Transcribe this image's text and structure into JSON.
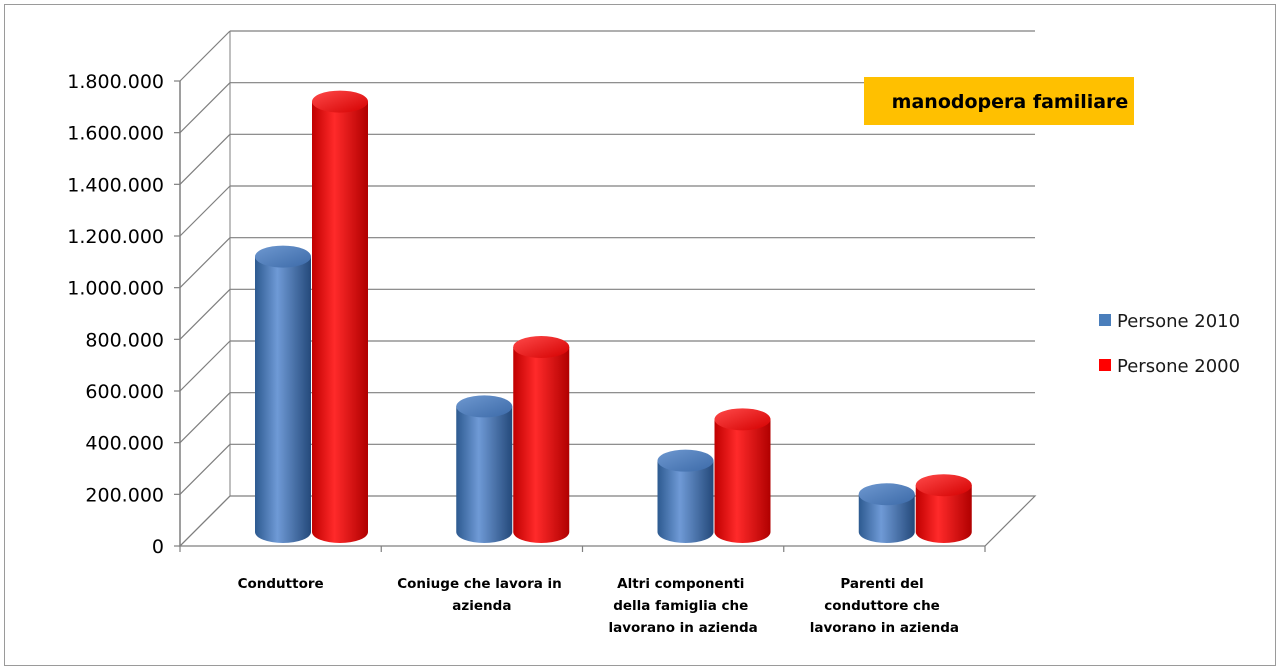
{
  "chart_data": {
    "type": "bar",
    "title": "manodopera familiare",
    "xlabel": "",
    "ylabel": "",
    "categories": [
      "Conduttore",
      "Coniuge che lavora in azienda",
      "Altri componenti della famiglia che lavorano in azienda",
      "Parenti del conduttore che lavorano in azienda"
    ],
    "category_lines": [
      [
        "Conduttore"
      ],
      [
        "Coniuge che lavora in",
        "azienda"
      ],
      [
        "Altri componenti",
        "della famiglia che",
        "lavorano in azienda"
      ],
      [
        "Parenti del",
        "conduttore che",
        "lavorano in azienda"
      ]
    ],
    "series": [
      {
        "name": "Persone 2010",
        "color": "#4a7ebb",
        "values": [
          1070000,
          490000,
          280000,
          150000
        ]
      },
      {
        "name": "Persone 2000",
        "color": "#ff0000",
        "values": [
          1670000,
          720000,
          440000,
          185000
        ]
      }
    ],
    "ylim": [
      0,
      1800000
    ],
    "y_ticks": [
      0,
      200000,
      400000,
      600000,
      800000,
      1000000,
      1200000,
      1400000,
      1600000,
      1800000
    ],
    "y_tick_labels": [
      "0",
      "200.000",
      "400.000",
      "600.000",
      "800.000",
      "1.000.000",
      "1.200.000",
      "1.400.000",
      "1.600.000",
      "1.800.000"
    ],
    "grid": true,
    "legend_position": "right",
    "style": "3d-cylinder",
    "title_background": "#ffc000"
  }
}
